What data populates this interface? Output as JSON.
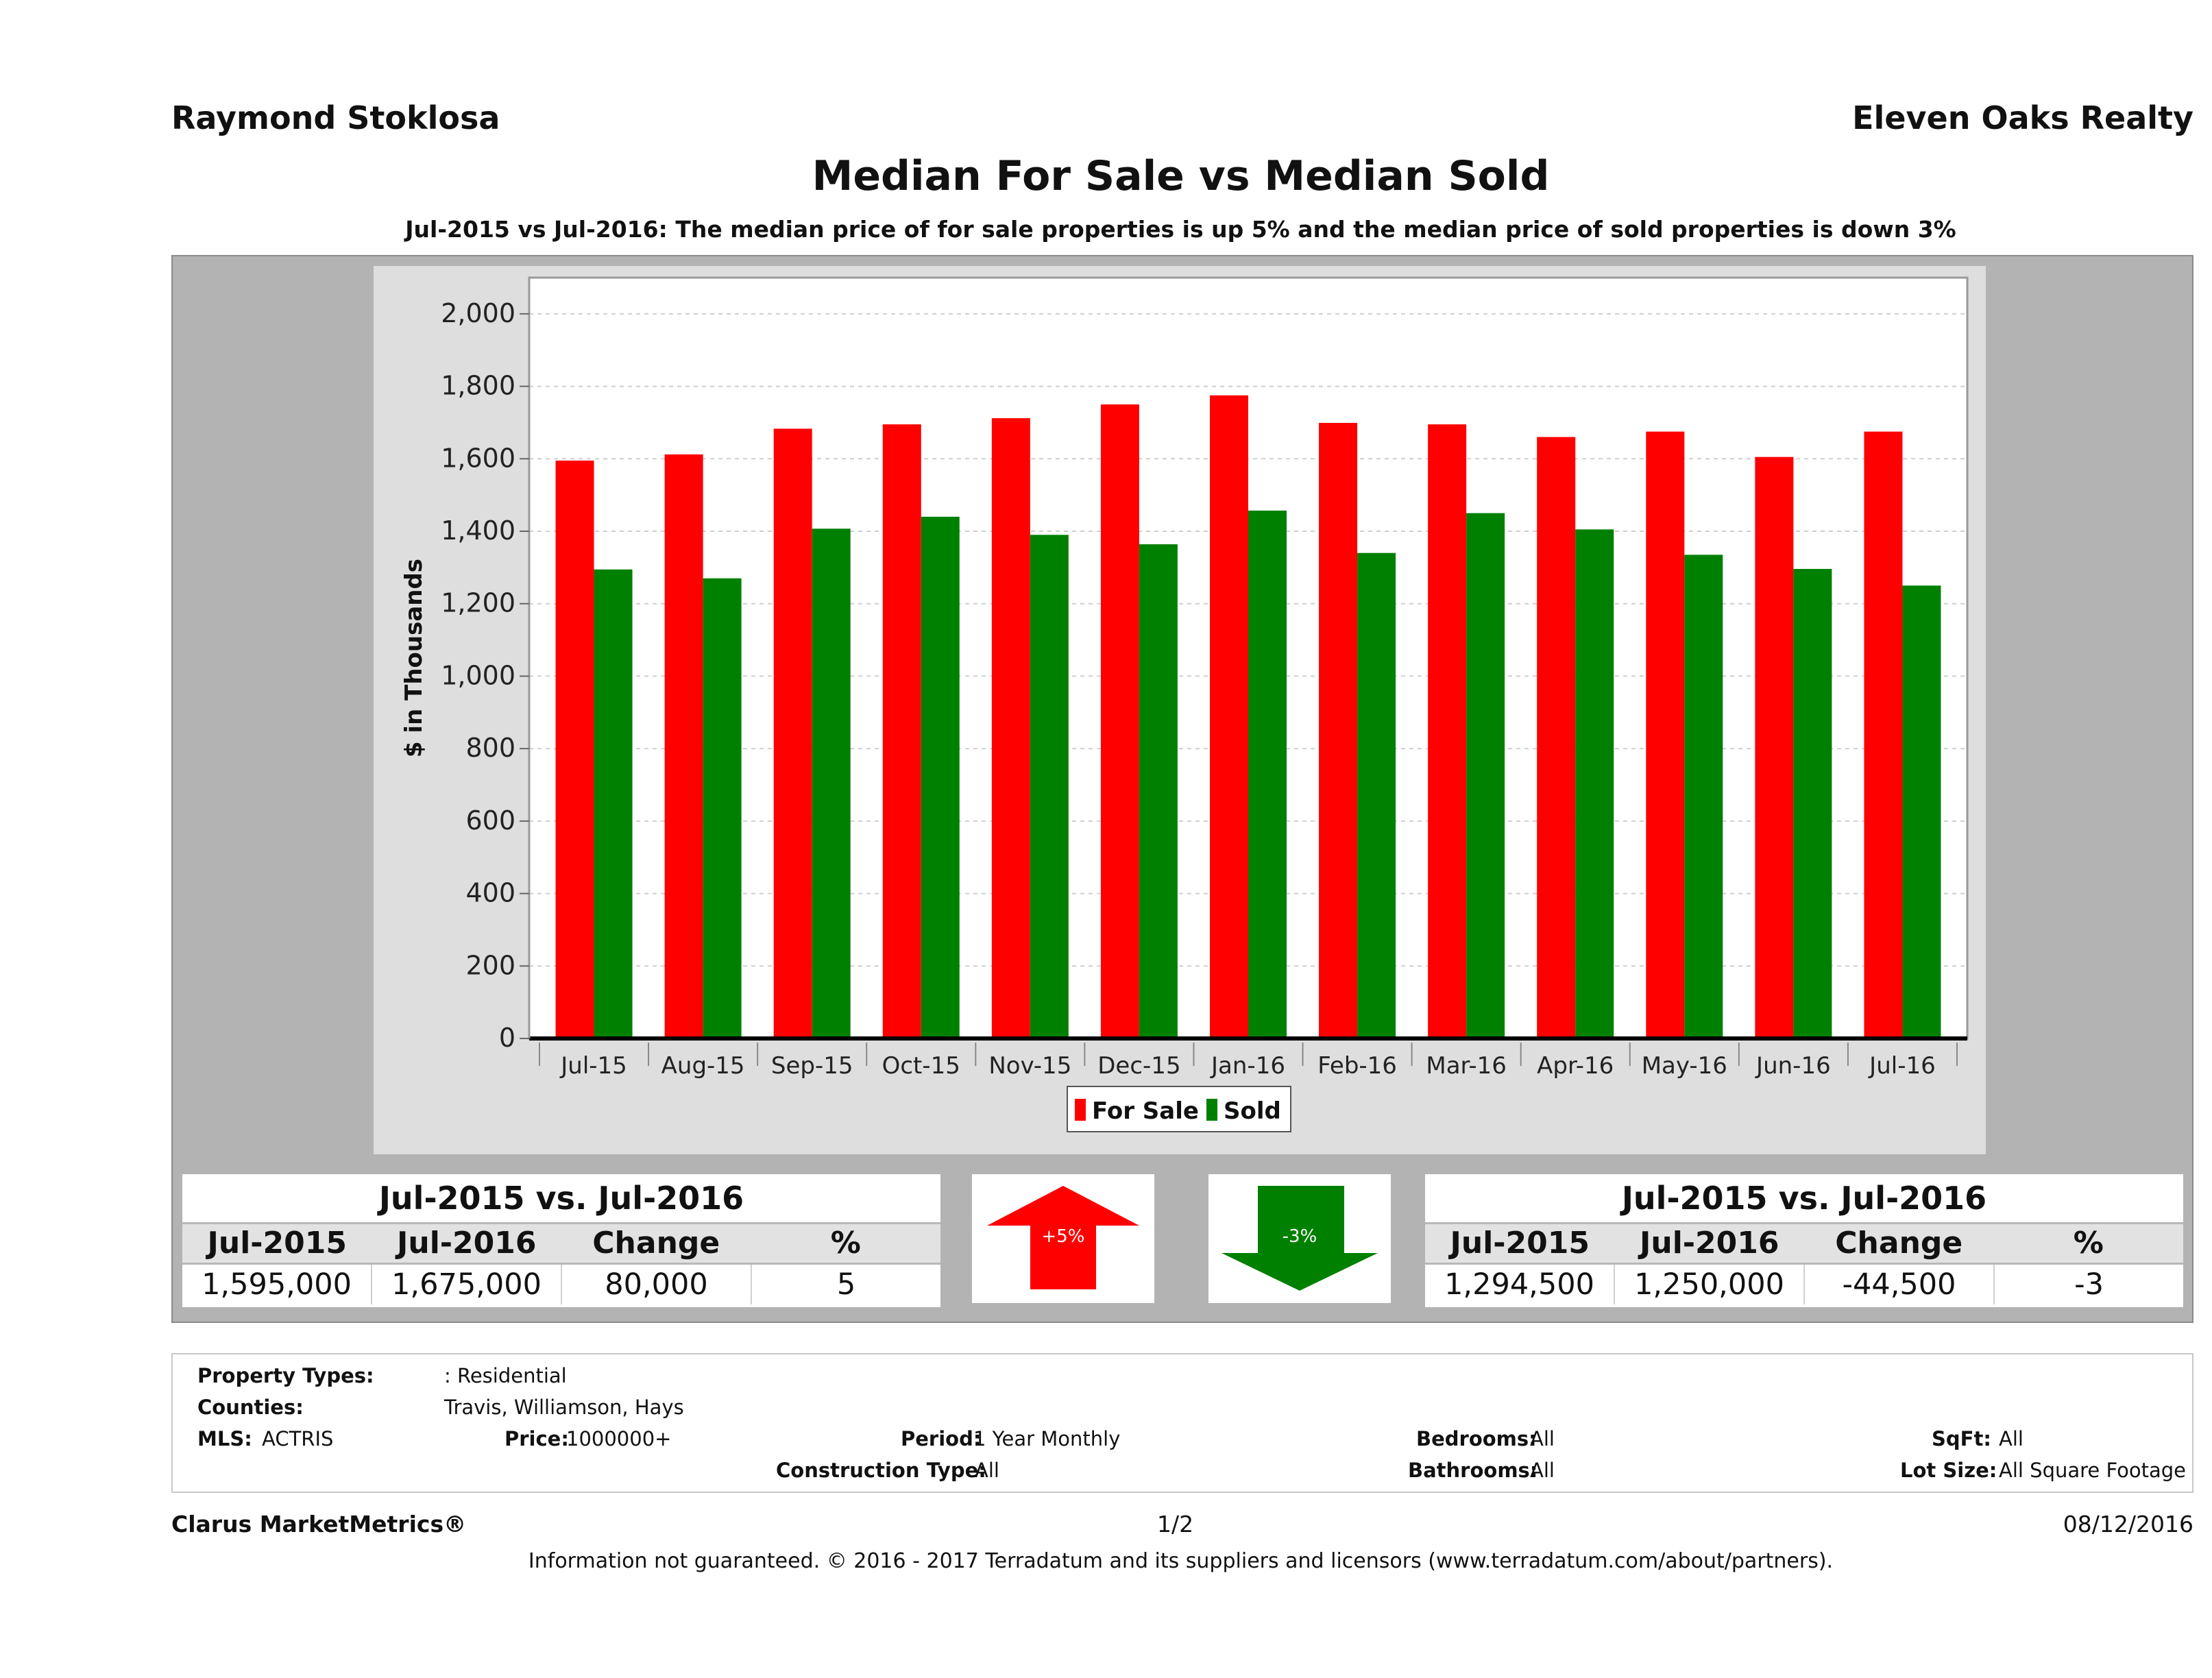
{
  "header": {
    "agent": "Raymond Stoklosa",
    "company": "Eleven Oaks Realty",
    "title": "Median For Sale vs Median Sold",
    "subtitle": "Jul-2015 vs Jul-2016: The median price of for sale properties is up 5% and the median price of sold properties is down 3%"
  },
  "chart_data": {
    "type": "bar",
    "ylabel": "$ in Thousands",
    "xlabel": "",
    "ylim": [
      0,
      2100
    ],
    "yticks": [
      "0",
      "200",
      "400",
      "600",
      "800",
      "1,000",
      "1,200",
      "1,400",
      "1,600",
      "1,800",
      "2,000"
    ],
    "categories": [
      "Jul-15",
      "Aug-15",
      "Sep-15",
      "Oct-15",
      "Nov-15",
      "Dec-15",
      "Jan-16",
      "Feb-16",
      "Mar-16",
      "Apr-16",
      "May-16",
      "Jun-16",
      "Jul-16"
    ],
    "series": [
      {
        "name": "For Sale",
        "color": "#ff0000",
        "values": [
          1595,
          1612,
          1683,
          1695,
          1712,
          1750,
          1775,
          1699,
          1695,
          1660,
          1675,
          1605,
          1675
        ]
      },
      {
        "name": "Sold",
        "color": "#008000",
        "values": [
          1294.5,
          1270,
          1407,
          1440,
          1390,
          1364,
          1457,
          1340,
          1450,
          1405,
          1335,
          1296,
          1250
        ]
      }
    ],
    "grid": true,
    "legend": "bottom-center"
  },
  "stats_for_sale": {
    "heading": "Jul-2015 vs. Jul-2016",
    "cols": [
      "Jul-2015",
      "Jul-2016",
      "Change",
      "%"
    ],
    "vals": [
      "1,595,000",
      "1,675,000",
      "80,000",
      "5"
    ]
  },
  "arrow_up": {
    "label": "+5%",
    "color": "#ff0000",
    "icon": "arrow-up-icon"
  },
  "arrow_down": {
    "label": "-3%",
    "color": "#008000",
    "icon": "arrow-down-icon"
  },
  "stats_sold": {
    "heading": "Jul-2015 vs. Jul-2016",
    "cols": [
      "Jul-2015",
      "Jul-2016",
      "Change",
      "%"
    ],
    "vals": [
      "1,294,500",
      "1,250,000",
      "-44,500",
      "-3"
    ]
  },
  "filters": {
    "property_types_label": "Property Types:",
    "property_types_value": ": Residential",
    "counties_label": "Counties:",
    "counties_value": "Travis, Williamson, Hays",
    "mls_label": "MLS:",
    "mls_value": "ACTRIS",
    "price_label": "Price:",
    "price_value": "1000000+",
    "period_label": "Period:",
    "period_value": "1 Year Monthly",
    "construction_label": "Construction Type:",
    "construction_value": "All",
    "bedrooms_label": "Bedrooms:",
    "bedrooms_value": "All",
    "bathrooms_label": "Bathrooms:",
    "bathrooms_value": "All",
    "sqft_label": "SqFt:",
    "sqft_value": "All",
    "lot_label": "Lot Size:",
    "lot_value": "All Square Footage"
  },
  "footer": {
    "brand": "Clarus MarketMetrics®",
    "page": "1/2",
    "date": "08/12/2016",
    "disclaimer": "Information not guaranteed. © 2016 - 2017 Terradatum and its suppliers and licensors (www.terradatum.com/about/partners)."
  }
}
